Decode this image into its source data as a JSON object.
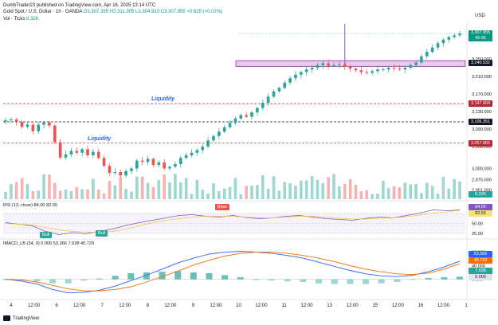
{
  "header": {
    "publisher": "DumbTrader23 published on TradingView.com, Apr 16, 2025 13:14 UTC",
    "symbol": "Gold Spot / U.S. Dollar · 1h · OANDA",
    "ohlc": "O3,307.335 H3,311.305 L3,304.910 C3,307.955 +0.625 (+0.02%)",
    "vol_label": "Vol · Ticks",
    "vol_value": "8.32K",
    "currency": "USD"
  },
  "chart_data": [
    {
      "type": "candlestick",
      "title": "Gold Spot / U.S. Dollar · 1h · OANDA",
      "x_ticks": [
        "4",
        "12:00",
        "6",
        "12:00",
        "7",
        "12:00",
        "8",
        "12:00",
        "9",
        "12:00",
        "10",
        "12:00",
        "11",
        "12:00",
        "13",
        "12:00",
        "15",
        "12:00",
        "16",
        "12:00",
        "1"
      ],
      "y_ticks": [
        3250,
        3210,
        3170,
        3130,
        3090,
        3050,
        3000,
        2975,
        2951
      ],
      "y_tick_labels": [
        "3,250.000",
        "3,210.000",
        "3,170.000",
        "3,130.000",
        "3,090.000",
        "3,050.000",
        "3,000.000",
        "2,975.000",
        "2,951.000"
      ],
      "ylim": [
        2930,
        3330
      ],
      "close_path": [
        3110,
        3112,
        3106,
        3095,
        3100,
        3085,
        3100,
        3105,
        3098,
        3060,
        3025,
        3032,
        3040,
        3036,
        3044,
        3030,
        3038,
        3024,
        3006,
        2990,
        2992,
        2984,
        2994,
        3000,
        3018,
        3015,
        3022,
        3008,
        3014,
        3000,
        3004,
        3010,
        3024,
        3030,
        3036,
        3042,
        3050,
        3064,
        3074,
        3084,
        3094,
        3104,
        3114,
        3122,
        3118,
        3128,
        3138,
        3150,
        3164,
        3176,
        3184,
        3196,
        3206,
        3214,
        3220,
        3226,
        3230,
        3236,
        3240,
        3234,
        3236,
        3238,
        3232,
        3228,
        3224,
        3220,
        3218,
        3222,
        3226,
        3226,
        3230,
        3228,
        3226,
        3230,
        3236,
        3242,
        3256,
        3266,
        3276,
        3286,
        3294,
        3300,
        3304,
        3308
      ],
      "price_levels": [
        {
          "label": "3,307.955",
          "sub": "45:36",
          "value": 3307.955,
          "color": "#089981"
        },
        {
          "label": "3,240.532",
          "value": 3240.532,
          "color": "#131722"
        },
        {
          "label": "3,147.904",
          "value": 3147.904,
          "color": "#b22833"
        },
        {
          "label": "3,106.351",
          "value": 3106.351,
          "color": "#131722"
        },
        {
          "label": "3,057.865",
          "value": 3057.865,
          "color": "#b22833"
        }
      ],
      "volume_label": "8.32K",
      "annotations": [
        {
          "text": "Liquidity",
          "value": 3147.904
        },
        {
          "text": "Liquidity",
          "value": 3057.865
        }
      ],
      "zone": {
        "low": 3233,
        "high": 3246
      }
    },
    {
      "type": "line",
      "title": "RSI (13, close) 84.00 82.55",
      "y_ticks": [
        75,
        50,
        25
      ],
      "y_tick_labels": [
        "75.00",
        "50.00",
        "25.00"
      ],
      "ylim": [
        15,
        95
      ],
      "series": [
        {
          "name": "RSI",
          "value_label": "84.00",
          "values": [
            52,
            48,
            44,
            30,
            22,
            27,
            24,
            30,
            36,
            45,
            52,
            58,
            64,
            70,
            72,
            68,
            66,
            70,
            65,
            62,
            64,
            68,
            70,
            66,
            62,
            60,
            58,
            63,
            66,
            64,
            70,
            76,
            84,
            82,
            84
          ]
        },
        {
          "name": "RSI-based MA",
          "value_label": "82.55",
          "values": [
            50,
            48,
            46,
            40,
            34,
            30,
            28,
            28,
            30,
            36,
            44,
            52,
            58,
            62,
            66,
            68,
            68,
            68,
            66,
            64,
            64,
            66,
            68,
            68,
            66,
            63,
            61,
            61,
            63,
            64,
            67,
            71,
            76,
            79,
            82.55
          ]
        }
      ],
      "badges": [
        {
          "text": "Bull",
          "value": 22
        },
        {
          "text": "Bull",
          "value": 28
        },
        {
          "text": "Bear",
          "value": 72
        }
      ]
    },
    {
      "type": "line",
      "title": "IMACD_LB (34, 9) 0.000 53.366 7.638 45.729",
      "y_ticks": [
        80,
        40,
        0
      ],
      "y_tick_labels": [
        "80.000",
        "40.000",
        "0.000"
      ],
      "ylim": [
        -50,
        95
      ],
      "series": [
        {
          "name": "MACD",
          "value_label": "53.366",
          "values": [
            0,
            -5,
            -14,
            -30,
            -40,
            -38,
            -32,
            -20,
            -4,
            12,
            30,
            48,
            62,
            74,
            80,
            82,
            80,
            76,
            70,
            62,
            50,
            38,
            26,
            16,
            10,
            8,
            12,
            22,
            36,
            53.366
          ]
        },
        {
          "name": "Signal",
          "value_label": "45.729",
          "values": [
            0,
            -2,
            -8,
            -18,
            -28,
            -34,
            -34,
            -30,
            -22,
            -8,
            8,
            24,
            42,
            56,
            68,
            76,
            80,
            80,
            76,
            70,
            62,
            52,
            40,
            30,
            22,
            16,
            14,
            18,
            30,
            45.729
          ]
        },
        {
          "name": "Histogram",
          "value_label": "7.638",
          "values": [
            0,
            -3,
            -6,
            -12,
            -12,
            -4,
            2,
            10,
            18,
            20,
            22,
            24,
            20,
            18,
            12,
            6,
            0,
            -4,
            -6,
            -8,
            -12,
            -14,
            -14,
            -14,
            -12,
            -8,
            -2,
            4,
            6,
            7.638
          ]
        }
      ],
      "zero_label": "0.000"
    }
  ],
  "footer": {
    "brand": "TradingView"
  }
}
